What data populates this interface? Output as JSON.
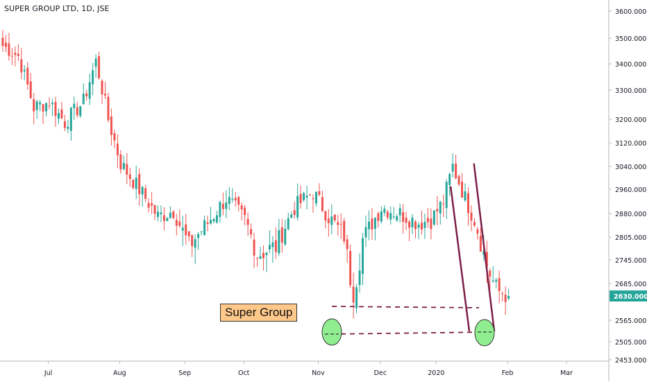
{
  "title": "SUPER GROUP LTD, 1D, JSE",
  "colors": {
    "up": "#26a69a",
    "down": "#ef5350",
    "trendline": "#7b1e46",
    "highlight_fill": "#90ee90",
    "price_tag": "#26a69a",
    "label_bg": "#fdc889"
  },
  "chart_data": {
    "type": "candlestick",
    "annotation": "Super Group",
    "current_price": "2630.0000",
    "x_ticks": [
      "Jul",
      "Aug",
      "Sep",
      "Oct",
      "Nov",
      "Dec",
      "2020",
      "Feb",
      "Mar"
    ],
    "y_ticks": [
      "3600.0000",
      "3500.0000",
      "3400.0000",
      "3300.0000",
      "3200.0000",
      "3120.0000",
      "3040.0000",
      "2960.0000",
      "2880.0000",
      "2805.0000",
      "2745.0000",
      "2685.0000",
      "2630.0000",
      "2565.0000",
      "2505.0000",
      "2453.0000"
    ],
    "y_tick_values": [
      3600,
      3500,
      3400,
      3300,
      3200,
      3120,
      3040,
      2960,
      2880,
      2805,
      2745,
      2685,
      2630,
      2565,
      2505,
      2453
    ],
    "grid": false,
    "anchors": [
      {
        "day": 0,
        "price": 3470
      },
      {
        "day": 5,
        "price": 3430
      },
      {
        "day": 10,
        "price": 3240
      },
      {
        "day": 15,
        "price": 3260
      },
      {
        "day": 20,
        "price": 3190
      },
      {
        "day": 26,
        "price": 3260
      },
      {
        "day": 30,
        "price": 3410
      },
      {
        "day": 34,
        "price": 3200
      },
      {
        "day": 38,
        "price": 3050
      },
      {
        "day": 44,
        "price": 2960
      },
      {
        "day": 50,
        "price": 2870
      },
      {
        "day": 55,
        "price": 2890
      },
      {
        "day": 60,
        "price": 2780
      },
      {
        "day": 66,
        "price": 2850
      },
      {
        "day": 72,
        "price": 2930
      },
      {
        "day": 78,
        "price": 2860
      },
      {
        "day": 82,
        "price": 2760
      },
      {
        "day": 88,
        "price": 2780
      },
      {
        "day": 94,
        "price": 2900
      },
      {
        "day": 100,
        "price": 2950
      },
      {
        "day": 105,
        "price": 2870
      },
      {
        "day": 110,
        "price": 2810
      },
      {
        "day": 113,
        "price": 2640
      },
      {
        "day": 116,
        "price": 2800
      },
      {
        "day": 122,
        "price": 2900
      },
      {
        "day": 128,
        "price": 2880
      },
      {
        "day": 134,
        "price": 2850
      },
      {
        "day": 138,
        "price": 2860
      },
      {
        "day": 142,
        "price": 2920
      },
      {
        "day": 145,
        "price": 3040
      },
      {
        "day": 149,
        "price": 2930
      },
      {
        "day": 152,
        "price": 2860
      },
      {
        "day": 156,
        "price": 2730
      },
      {
        "day": 160,
        "price": 2650
      },
      {
        "day": 163,
        "price": 2630
      }
    ]
  }
}
